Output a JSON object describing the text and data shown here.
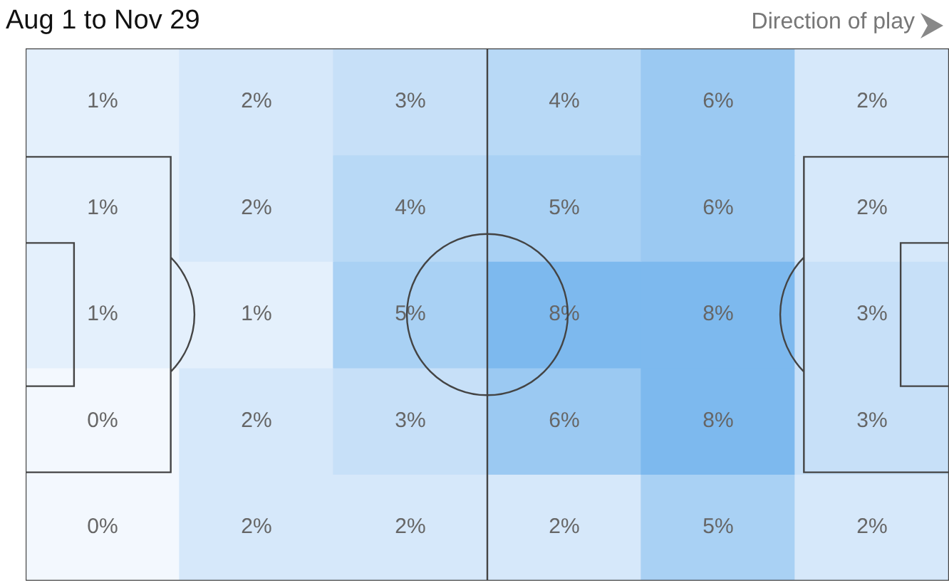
{
  "chart_data": {
    "type": "heatmap",
    "title": "Aug 1 to Nov 29",
    "annotations": [
      "Direction of play"
    ],
    "categories": [
      null,
      null,
      null,
      null,
      null,
      null
    ],
    "y_categories": [
      null,
      null,
      null,
      null,
      null
    ],
    "cells": [
      [
        1,
        2,
        3,
        4,
        6,
        2
      ],
      [
        1,
        2,
        4,
        5,
        6,
        2
      ],
      [
        1,
        1,
        5,
        8,
        8,
        3
      ],
      [
        0,
        2,
        3,
        6,
        8,
        3
      ],
      [
        0,
        2,
        2,
        2,
        5,
        2
      ]
    ],
    "cell_labels": [
      [
        "1%",
        "2%",
        "3%",
        "4%",
        "6%",
        "2%"
      ],
      [
        "1%",
        "2%",
        "4%",
        "5%",
        "6%",
        "2%"
      ],
      [
        "1%",
        "1%",
        "5%",
        "8%",
        "8%",
        "3%"
      ],
      [
        "0%",
        "2%",
        "3%",
        "6%",
        "8%",
        "3%"
      ],
      [
        "0%",
        "2%",
        "2%",
        "2%",
        "5%",
        "2%"
      ]
    ]
  }
}
